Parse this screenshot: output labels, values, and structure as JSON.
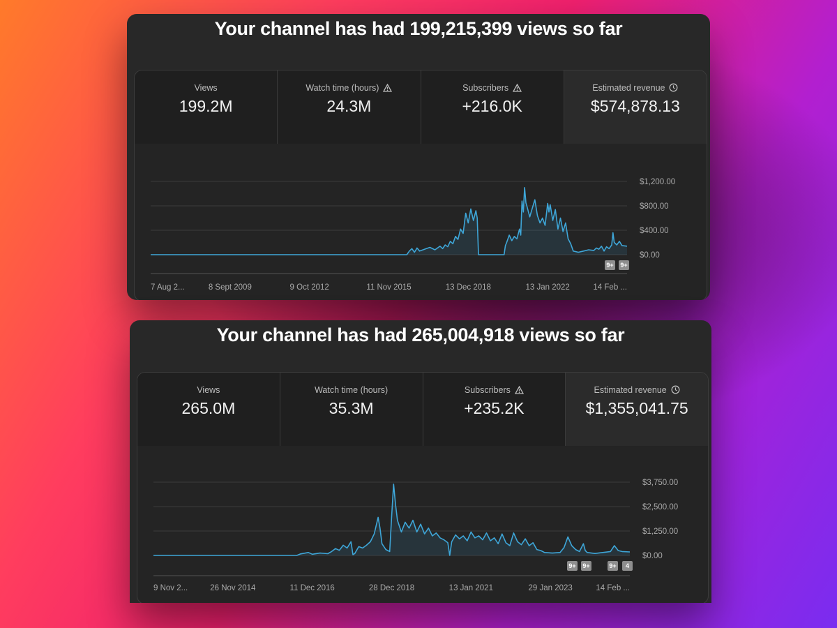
{
  "panels": [
    {
      "headline": "Your channel has had 199,215,399 views so far",
      "stats": [
        {
          "label": "Views",
          "value": "199.2M",
          "icon": ""
        },
        {
          "label": "Watch time (hours)",
          "value": "24.3M",
          "icon": "warning-icon"
        },
        {
          "label": "Subscribers",
          "value": "+216.0K",
          "icon": "warning-icon"
        },
        {
          "label": "Estimated revenue",
          "value": "$574,878.13",
          "icon": "clock-icon"
        }
      ],
      "chart_data": {
        "type": "area",
        "series_color": "#3ea6d8",
        "y_ticks": [
          "$1,200.00",
          "$800.00",
          "$400.00",
          "$0.00"
        ],
        "y_tick_values": [
          1200,
          800,
          400,
          0
        ],
        "ylim": [
          0,
          1200
        ],
        "x_tick_labels": [
          "7 Aug 2...",
          "8 Sept 2009",
          "9 Oct 2012",
          "11 Nov 2015",
          "13 Dec 2018",
          "13 Jan 2022",
          "14 Feb ..."
        ],
        "x_range": [
          2006.6,
          2025.2
        ],
        "points": [
          [
            2006.6,
            0
          ],
          [
            2016.6,
            0
          ],
          [
            2016.7,
            60
          ],
          [
            2016.8,
            100
          ],
          [
            2016.9,
            40
          ],
          [
            2017.0,
            110
          ],
          [
            2017.1,
            60
          ],
          [
            2017.3,
            90
          ],
          [
            2017.5,
            120
          ],
          [
            2017.7,
            80
          ],
          [
            2017.9,
            140
          ],
          [
            2018.0,
            100
          ],
          [
            2018.1,
            160
          ],
          [
            2018.2,
            130
          ],
          [
            2018.3,
            220
          ],
          [
            2018.4,
            180
          ],
          [
            2018.5,
            300
          ],
          [
            2018.6,
            250
          ],
          [
            2018.7,
            420
          ],
          [
            2018.8,
            350
          ],
          [
            2018.9,
            680
          ],
          [
            2019.0,
            520
          ],
          [
            2019.1,
            750
          ],
          [
            2019.2,
            560
          ],
          [
            2019.3,
            720
          ],
          [
            2019.35,
            600
          ],
          [
            2019.4,
            0
          ],
          [
            2020.4,
            0
          ],
          [
            2020.45,
            150
          ],
          [
            2020.5,
            200
          ],
          [
            2020.6,
            320
          ],
          [
            2020.7,
            230
          ],
          [
            2020.8,
            300
          ],
          [
            2020.9,
            260
          ],
          [
            2021.0,
            420
          ],
          [
            2021.05,
            320
          ],
          [
            2021.1,
            880
          ],
          [
            2021.15,
            700
          ],
          [
            2021.2,
            1100
          ],
          [
            2021.25,
            850
          ],
          [
            2021.3,
            780
          ],
          [
            2021.4,
            620
          ],
          [
            2021.5,
            760
          ],
          [
            2021.6,
            900
          ],
          [
            2021.7,
            640
          ],
          [
            2021.8,
            520
          ],
          [
            2021.9,
            600
          ],
          [
            2022.0,
            480
          ],
          [
            2022.1,
            840
          ],
          [
            2022.15,
            700
          ],
          [
            2022.2,
            820
          ],
          [
            2022.3,
            560
          ],
          [
            2022.4,
            740
          ],
          [
            2022.5,
            420
          ],
          [
            2022.6,
            600
          ],
          [
            2022.7,
            380
          ],
          [
            2022.8,
            520
          ],
          [
            2022.9,
            260
          ],
          [
            2023.0,
            180
          ],
          [
            2023.1,
            60
          ],
          [
            2023.3,
            40
          ],
          [
            2023.5,
            60
          ],
          [
            2023.7,
            80
          ],
          [
            2023.9,
            70
          ],
          [
            2024.0,
            110
          ],
          [
            2024.1,
            90
          ],
          [
            2024.2,
            140
          ],
          [
            2024.3,
            60
          ],
          [
            2024.4,
            130
          ],
          [
            2024.5,
            100
          ],
          [
            2024.6,
            160
          ],
          [
            2024.65,
            360
          ],
          [
            2024.7,
            200
          ],
          [
            2024.8,
            160
          ],
          [
            2024.9,
            220
          ],
          [
            2025.0,
            150
          ],
          [
            2025.2,
            140
          ]
        ],
        "badges": [
          "9+",
          "9+"
        ]
      }
    },
    {
      "headline": "Your channel has had 265,004,918 views so far",
      "stats": [
        {
          "label": "Views",
          "value": "265.0M",
          "icon": ""
        },
        {
          "label": "Watch time (hours)",
          "value": "35.3M",
          "icon": ""
        },
        {
          "label": "Subscribers",
          "value": "+235.2K",
          "icon": "warning-icon"
        },
        {
          "label": "Estimated revenue",
          "value": "$1,355,041.75",
          "icon": "clock-icon"
        }
      ],
      "chart_data": {
        "type": "area",
        "series_color": "#3ea6d8",
        "y_ticks": [
          "$3,750.00",
          "$2,500.00",
          "$1,250.00",
          "$0.00"
        ],
        "y_tick_values": [
          3750,
          2500,
          1250,
          0
        ],
        "ylim": [
          0,
          3750
        ],
        "x_tick_labels": [
          "9 Nov 2...",
          "26 Nov 2014",
          "11 Dec 2016",
          "28 Dec 2018",
          "13 Jan 2021",
          "29 Jan 2023",
          "14 Feb ..."
        ],
        "x_range": [
          2012.9,
          2025.2
        ],
        "points": [
          [
            2012.9,
            0
          ],
          [
            2016.6,
            0
          ],
          [
            2016.7,
            80
          ],
          [
            2016.9,
            150
          ],
          [
            2017.0,
            60
          ],
          [
            2017.2,
            120
          ],
          [
            2017.4,
            90
          ],
          [
            2017.5,
            200
          ],
          [
            2017.6,
            350
          ],
          [
            2017.7,
            260
          ],
          [
            2017.8,
            520
          ],
          [
            2017.9,
            380
          ],
          [
            2018.0,
            700
          ],
          [
            2018.05,
            40
          ],
          [
            2018.1,
            100
          ],
          [
            2018.2,
            450
          ],
          [
            2018.3,
            380
          ],
          [
            2018.4,
            520
          ],
          [
            2018.5,
            700
          ],
          [
            2018.6,
            1100
          ],
          [
            2018.7,
            1950
          ],
          [
            2018.75,
            1400
          ],
          [
            2018.8,
            600
          ],
          [
            2018.9,
            300
          ],
          [
            2019.0,
            200
          ],
          [
            2019.05,
            2000
          ],
          [
            2019.1,
            3650
          ],
          [
            2019.15,
            2600
          ],
          [
            2019.2,
            1800
          ],
          [
            2019.3,
            1200
          ],
          [
            2019.4,
            1700
          ],
          [
            2019.5,
            1400
          ],
          [
            2019.6,
            1800
          ],
          [
            2019.7,
            1200
          ],
          [
            2019.8,
            1600
          ],
          [
            2019.9,
            1100
          ],
          [
            2020.0,
            1400
          ],
          [
            2020.1,
            1000
          ],
          [
            2020.2,
            1150
          ],
          [
            2020.3,
            900
          ],
          [
            2020.4,
            800
          ],
          [
            2020.5,
            650
          ],
          [
            2020.55,
            0
          ],
          [
            2020.6,
            700
          ],
          [
            2020.7,
            1050
          ],
          [
            2020.8,
            850
          ],
          [
            2020.9,
            1000
          ],
          [
            2021.0,
            750
          ],
          [
            2021.1,
            1200
          ],
          [
            2021.2,
            900
          ],
          [
            2021.3,
            1000
          ],
          [
            2021.4,
            800
          ],
          [
            2021.5,
            1150
          ],
          [
            2021.6,
            750
          ],
          [
            2021.7,
            900
          ],
          [
            2021.8,
            600
          ],
          [
            2021.9,
            1100
          ],
          [
            2022.0,
            650
          ],
          [
            2022.1,
            500
          ],
          [
            2022.2,
            1150
          ],
          [
            2022.3,
            700
          ],
          [
            2022.4,
            550
          ],
          [
            2022.5,
            850
          ],
          [
            2022.6,
            500
          ],
          [
            2022.7,
            650
          ],
          [
            2022.8,
            300
          ],
          [
            2022.9,
            250
          ],
          [
            2023.0,
            150
          ],
          [
            2023.2,
            120
          ],
          [
            2023.4,
            150
          ],
          [
            2023.5,
            400
          ],
          [
            2023.6,
            950
          ],
          [
            2023.7,
            500
          ],
          [
            2023.8,
            300
          ],
          [
            2023.9,
            200
          ],
          [
            2024.0,
            600
          ],
          [
            2024.05,
            250
          ],
          [
            2024.1,
            150
          ],
          [
            2024.3,
            100
          ],
          [
            2024.5,
            150
          ],
          [
            2024.7,
            200
          ],
          [
            2024.8,
            500
          ],
          [
            2024.9,
            250
          ],
          [
            2025.0,
            200
          ],
          [
            2025.2,
            180
          ]
        ],
        "badges": [
          "9+",
          "9+",
          "9+",
          "4"
        ]
      }
    }
  ]
}
